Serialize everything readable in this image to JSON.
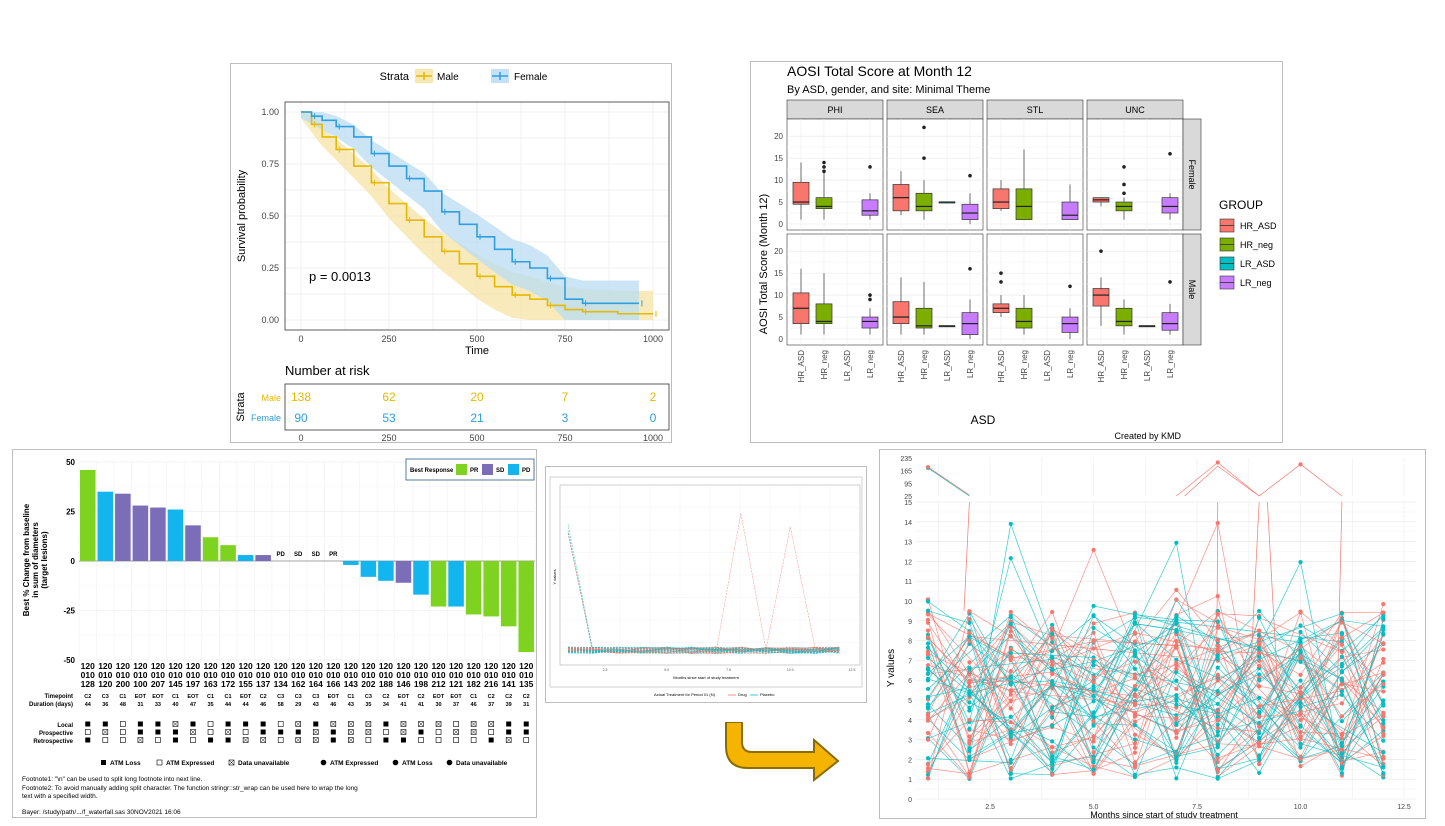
{
  "km": {
    "legend_title": "Strata",
    "legend_male": "Male",
    "legend_female": "Female",
    "ylabel": "Survival probability",
    "xlabel": "Time",
    "pvalue": "p = 0.0013",
    "yticks": [
      "1.00",
      "0.75",
      "0.50",
      "0.25",
      "0.00"
    ],
    "xticks": [
      "0",
      "250",
      "500",
      "750",
      "1000"
    ],
    "risk_title": "Number at risk",
    "risk_ylabel": "Strata",
    "risk_male_label": "Male",
    "risk_female_label": "Female",
    "risk_male": [
      "138",
      "62",
      "20",
      "7",
      "2"
    ],
    "risk_female": [
      "90",
      "53",
      "21",
      "3",
      "0"
    ],
    "colors": {
      "male": "#E7B800",
      "female": "#2E9FDF"
    }
  },
  "aosi": {
    "title": "AOSI Total Score at Month 12",
    "subtitle": "By ASD, gender, and site: Minimal Theme",
    "ylabel": "AOSI Total Score (Month 12)",
    "xlabel": "ASD",
    "caption": "Created by KMD",
    "facets_col": [
      "PHI",
      "SEA",
      "STL",
      "UNC"
    ],
    "facets_row": [
      "Female",
      "Male"
    ],
    "yticks": [
      "20",
      "15",
      "10",
      "5",
      "0"
    ],
    "xcats": [
      "HR_ASD",
      "HR_neg",
      "LR_ASD",
      "LR_neg"
    ],
    "legend_title": "GROUP",
    "legend": [
      "HR_ASD",
      "HR_neg",
      "LR_ASD",
      "LR_neg"
    ],
    "colors": [
      "#F8766D",
      "#7CAE00",
      "#00BFC4",
      "#C77CFF"
    ]
  },
  "waterfall": {
    "ylabel_lines": [
      "Best % Change from baseline",
      "in sum of diameters",
      "(target lesions)"
    ],
    "yticks": [
      "50",
      "25",
      "0",
      "-25",
      "-50"
    ],
    "legend_title": "Best Response",
    "legend": [
      "PR",
      "SD",
      "PD"
    ],
    "legend_colors": [
      "#7ED321",
      "#7B6DB8",
      "#12B5EE"
    ],
    "id_line1": "120",
    "id_line2": "010",
    "id_line3": [
      "128",
      "120",
      "200",
      "100",
      "207",
      "145",
      "197",
      "163",
      "172",
      "155",
      "137",
      "134",
      "162",
      "164",
      "166",
      "143",
      "202",
      "188",
      "146",
      "198",
      "212",
      "121",
      "182",
      "216",
      "141",
      "135"
    ],
    "row_timepoint_label": "Timepoint",
    "row_duration_label": "Duration (days)",
    "timepoints": [
      "C2",
      "C3",
      "C1",
      "EOT",
      "EOT",
      "C1",
      "EOT",
      "C1",
      "C1",
      "EOT",
      "C2",
      "C3",
      "C3",
      "C3",
      "EOT",
      "C1",
      "C3",
      "C2",
      "EOT",
      "C2",
      "EOT",
      "EOT",
      "C1",
      "C2",
      "C2",
      "C2"
    ],
    "durations": [
      "44",
      "36",
      "48",
      "31",
      "33",
      "40",
      "47",
      "35",
      "44",
      "44",
      "46",
      "58",
      "29",
      "43",
      "46",
      "43",
      "35",
      "34",
      "41",
      "41",
      "30",
      "37",
      "46",
      "37",
      "39",
      "31"
    ],
    "zero_labels": [
      "PD",
      "SD",
      "SD",
      "PR"
    ],
    "row_local": "Local",
    "row_prospective": "Prospective",
    "row_retrospective": "Retrospective",
    "legend2": [
      "ATM Loss",
      "ATM Expressed",
      "Data unavailable",
      "ATM Expressed",
      "ATM Loss",
      "Data unavailable"
    ],
    "footnote1": "Footnote1: \"\\n\" can be used to split long footnote into next line.",
    "footnote2": "Footnote2: To avoid manually adding split character. The function stringr::str_wrap can be used here to wrap the long",
    "footnote3": "text with a specified width.",
    "source": "Bayer: /study/path/.../f_waterfall.sas 30NOV2021 16:06"
  },
  "small": {
    "ylabel": "Y values",
    "xlabel": "Months since start of study treatment",
    "legend_title": "Actual Treatment for Period 01 (N)",
    "legend": [
      "Drug",
      "Placebo"
    ],
    "xticks": [
      "2.5",
      "5.0",
      "7.5",
      "10.0",
      "12.5"
    ],
    "colors": [
      "#F8766D",
      "#00BFC4"
    ]
  },
  "spag": {
    "ylabel": "Y values",
    "xlabel": "Months since start of study treatment",
    "yticks_top": [
      "235",
      "165",
      "95",
      "25"
    ],
    "yticks": [
      "15",
      "14",
      "13",
      "12",
      "11",
      "10",
      "9",
      "8",
      "7",
      "6",
      "5",
      "4",
      "3",
      "2",
      "1",
      "0"
    ],
    "xticks": [
      "2.5",
      "5.0",
      "7.5",
      "10.0",
      "12.5"
    ],
    "colors": [
      "#F8766D",
      "#00BFC4"
    ]
  },
  "chart_data": [
    {
      "type": "line",
      "title": "",
      "xlabel": "Time",
      "ylabel": "Survival probability",
      "xlim": [
        0,
        1000
      ],
      "ylim": [
        0,
        1
      ],
      "series": [
        {
          "name": "Male",
          "x": [
            0,
            30,
            60,
            100,
            150,
            200,
            250,
            300,
            350,
            400,
            450,
            500,
            550,
            600,
            650,
            700,
            750,
            800,
            900,
            1000
          ],
          "y": [
            1.0,
            0.94,
            0.88,
            0.82,
            0.74,
            0.66,
            0.56,
            0.48,
            0.4,
            0.33,
            0.27,
            0.21,
            0.16,
            0.12,
            0.1,
            0.07,
            0.05,
            0.04,
            0.03,
            0.03
          ]
        },
        {
          "name": "Female",
          "x": [
            0,
            30,
            60,
            100,
            150,
            200,
            250,
            300,
            350,
            400,
            450,
            500,
            550,
            600,
            650,
            700,
            750,
            800,
            900,
            960
          ],
          "y": [
            1.0,
            0.98,
            0.96,
            0.93,
            0.88,
            0.8,
            0.74,
            0.68,
            0.62,
            0.52,
            0.46,
            0.4,
            0.34,
            0.28,
            0.25,
            0.2,
            0.1,
            0.08,
            0.08,
            0.08
          ]
        }
      ],
      "annotation": "p = 0.0013",
      "grid": true,
      "legend": "top"
    },
    {
      "type": "bar",
      "ylabel": "Best % Change from baseline in sum of diameters (target lesions)",
      "ylim": [
        -50,
        50
      ],
      "values": [
        46,
        35,
        34,
        28,
        27,
        26,
        18,
        12,
        8,
        3,
        3,
        0,
        0,
        0,
        0,
        -2,
        -8,
        -10,
        -11,
        -17,
        -23,
        -23,
        -27,
        -28,
        -33,
        -46
      ],
      "response": [
        "PR",
        "PD",
        "SD",
        "SD",
        "SD",
        "PD",
        "SD",
        "PR",
        "PR",
        "PD",
        "SD",
        "PD",
        "SD",
        "SD",
        "PR",
        "PD",
        "PD",
        "PD",
        "SD",
        "PD",
        "PR",
        "PD",
        "PR",
        "PR",
        "PR",
        "PR"
      ],
      "legend": "top-right"
    }
  ]
}
